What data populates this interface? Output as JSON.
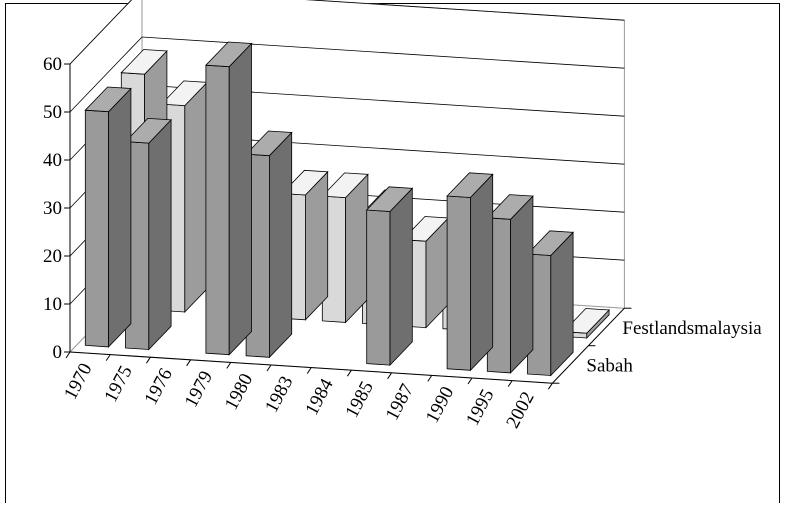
{
  "chart_data": {
    "type": "bar",
    "style": "3d-clustered-depth",
    "categories": [
      "1970",
      "1975",
      "1976",
      "1979",
      "1980",
      "1983",
      "1984",
      "1985",
      "1987",
      "1990",
      "1995",
      "2002"
    ],
    "series": [
      {
        "name": "Sabah",
        "values": [
          49,
          43,
          0,
          60,
          42,
          0,
          0,
          32,
          0,
          36,
          32,
          25
        ],
        "color": "#9a9a9a"
      },
      {
        "name": "Festlandsmalaysia",
        "values": [
          49,
          43,
          0,
          0,
          26,
          26,
          23,
          18,
          9,
          7,
          0,
          1
        ],
        "color": "#d9d9d9"
      }
    ],
    "yaxis": {
      "min": 0,
      "max": 60,
      "ticks": [
        0,
        10,
        20,
        30,
        40,
        50,
        60
      ]
    },
    "grid": true,
    "title": "",
    "xlabel": "",
    "ylabel": ""
  }
}
